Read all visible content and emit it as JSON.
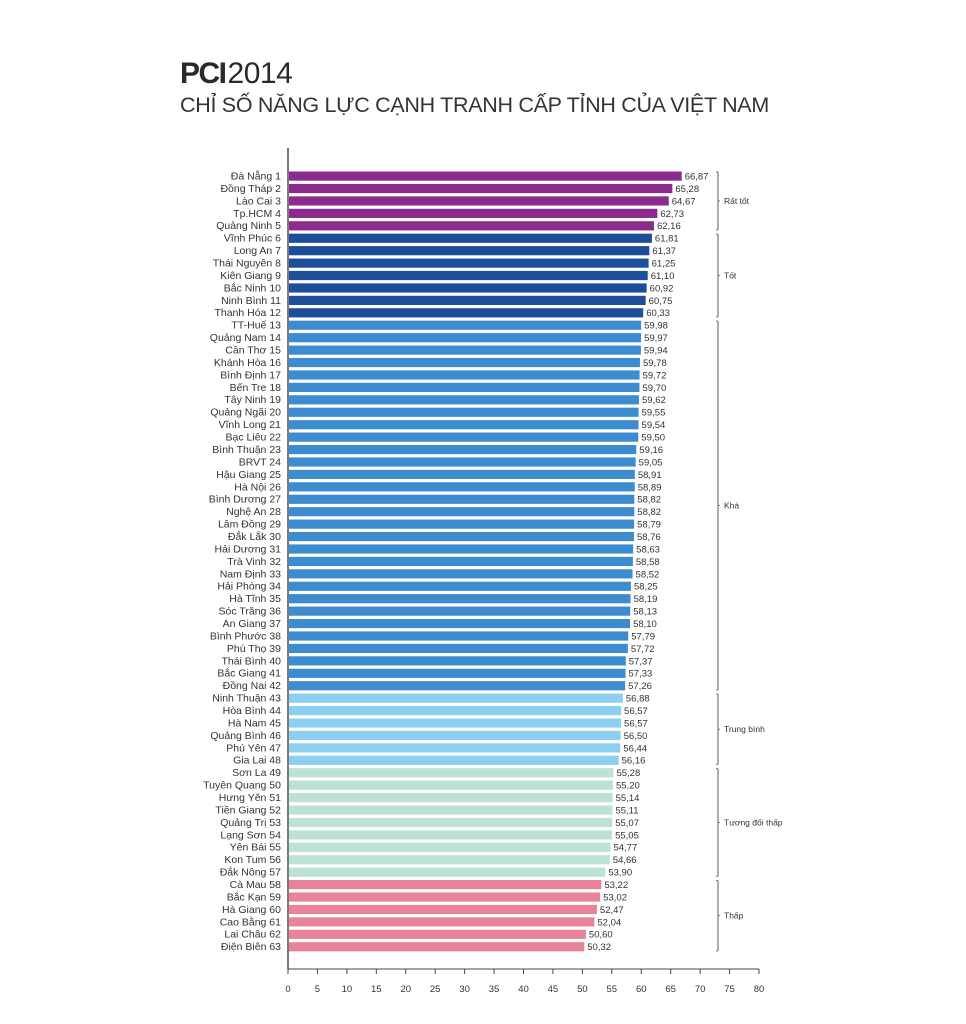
{
  "title": {
    "bold": "PCI",
    "year": "2014",
    "subtitle": "CHỈ SỐ NĂNG LỰC CẠNH TRANH CẤP TỈNH CỦA VIỆT NAM"
  },
  "chart_data": {
    "type": "bar",
    "orientation": "horizontal",
    "title": "PCI 2014 - Chỉ số năng lực cạnh tranh cấp tỉnh của Việt Nam",
    "xlabel": "",
    "ylabel": "",
    "xlim": [
      0,
      80
    ],
    "xticks": [
      0,
      5,
      10,
      15,
      20,
      25,
      30,
      35,
      40,
      45,
      50,
      55,
      60,
      65,
      70,
      75,
      80
    ],
    "grid": false,
    "categories": [
      {
        "name": "Đà Nẵng",
        "rank": 1,
        "value": 66.87,
        "label": "66,87",
        "group": "Rất tốt"
      },
      {
        "name": "Đồng Tháp",
        "rank": 2,
        "value": 65.28,
        "label": "65,28",
        "group": "Rất tốt"
      },
      {
        "name": "Lào Cai",
        "rank": 3,
        "value": 64.67,
        "label": "64,67",
        "group": "Rất tốt"
      },
      {
        "name": "Tp.HCM",
        "rank": 4,
        "value": 62.73,
        "label": "62,73",
        "group": "Rất tốt"
      },
      {
        "name": "Quảng Ninh",
        "rank": 5,
        "value": 62.16,
        "label": "62,16",
        "group": "Rất tốt"
      },
      {
        "name": "Vĩnh Phúc",
        "rank": 6,
        "value": 61.81,
        "label": "61,81",
        "group": "Tốt"
      },
      {
        "name": "Long An",
        "rank": 7,
        "value": 61.37,
        "label": "61,37",
        "group": "Tốt"
      },
      {
        "name": "Thái Nguyên",
        "rank": 8,
        "value": 61.25,
        "label": "61,25",
        "group": "Tốt"
      },
      {
        "name": "Kiên Giang",
        "rank": 9,
        "value": 61.1,
        "label": "61,10",
        "group": "Tốt"
      },
      {
        "name": "Bắc Ninh",
        "rank": 10,
        "value": 60.92,
        "label": "60,92",
        "group": "Tốt"
      },
      {
        "name": "Ninh Bình",
        "rank": 11,
        "value": 60.75,
        "label": "60,75",
        "group": "Tốt"
      },
      {
        "name": "Thanh Hóa",
        "rank": 12,
        "value": 60.33,
        "label": "60,33",
        "group": "Tốt"
      },
      {
        "name": "TT-Huế",
        "rank": 13,
        "value": 59.98,
        "label": "59,98",
        "group": "Khá"
      },
      {
        "name": "Quảng Nam",
        "rank": 14,
        "value": 59.97,
        "label": "59,97",
        "group": "Khá"
      },
      {
        "name": "Cần Thơ",
        "rank": 15,
        "value": 59.94,
        "label": "59,94",
        "group": "Khá"
      },
      {
        "name": "Khánh Hòa",
        "rank": 16,
        "value": 59.78,
        "label": "59,78",
        "group": "Khá"
      },
      {
        "name": "Bình Định",
        "rank": 17,
        "value": 59.72,
        "label": "59,72",
        "group": "Khá"
      },
      {
        "name": "Bến Tre",
        "rank": 18,
        "value": 59.7,
        "label": "59,70",
        "group": "Khá"
      },
      {
        "name": "Tây Ninh",
        "rank": 19,
        "value": 59.62,
        "label": "59,62",
        "group": "Khá"
      },
      {
        "name": "Quảng Ngãi",
        "rank": 20,
        "value": 59.55,
        "label": "59,55",
        "group": "Khá"
      },
      {
        "name": "Vĩnh Long",
        "rank": 21,
        "value": 59.54,
        "label": "59,54",
        "group": "Khá"
      },
      {
        "name": "Bạc Liêu",
        "rank": 22,
        "value": 59.5,
        "label": "59,50",
        "group": "Khá"
      },
      {
        "name": "Bình Thuận",
        "rank": 23,
        "value": 59.16,
        "label": "59,16",
        "group": "Khá"
      },
      {
        "name": "BRVT",
        "rank": 24,
        "value": 59.05,
        "label": "59,05",
        "group": "Khá"
      },
      {
        "name": "Hậu Giang",
        "rank": 25,
        "value": 58.91,
        "label": "58,91",
        "group": "Khá"
      },
      {
        "name": "Hà Nội",
        "rank": 26,
        "value": 58.89,
        "label": "58,89",
        "group": "Khá"
      },
      {
        "name": "Bình Dương",
        "rank": 27,
        "value": 58.82,
        "label": "58,82",
        "group": "Khá"
      },
      {
        "name": "Nghệ An",
        "rank": 28,
        "value": 58.82,
        "label": "58,82",
        "group": "Khá"
      },
      {
        "name": "Lâm Đồng",
        "rank": 29,
        "value": 58.79,
        "label": "58,79",
        "group": "Khá"
      },
      {
        "name": "Đắk Lắk",
        "rank": 30,
        "value": 58.76,
        "label": "58,76",
        "group": "Khá"
      },
      {
        "name": "Hải Dương",
        "rank": 31,
        "value": 58.63,
        "label": "58,63",
        "group": "Khá"
      },
      {
        "name": "Trà Vinh",
        "rank": 32,
        "value": 58.58,
        "label": "58,58",
        "group": "Khá"
      },
      {
        "name": "Nam Định",
        "rank": 33,
        "value": 58.52,
        "label": "58,52",
        "group": "Khá"
      },
      {
        "name": "Hải Phòng",
        "rank": 34,
        "value": 58.25,
        "label": "58,25",
        "group": "Khá"
      },
      {
        "name": "Hà Tĩnh",
        "rank": 35,
        "value": 58.19,
        "label": "58,19",
        "group": "Khá"
      },
      {
        "name": "Sóc Trăng",
        "rank": 36,
        "value": 58.13,
        "label": "58,13",
        "group": "Khá"
      },
      {
        "name": "An Giang",
        "rank": 37,
        "value": 58.1,
        "label": "58,10",
        "group": "Khá"
      },
      {
        "name": "Bình Phước",
        "rank": 38,
        "value": 57.79,
        "label": "57,79",
        "group": "Khá"
      },
      {
        "name": "Phú Thọ",
        "rank": 39,
        "value": 57.72,
        "label": "57,72",
        "group": "Khá"
      },
      {
        "name": "Thái Bình",
        "rank": 40,
        "value": 57.37,
        "label": "57,37",
        "group": "Khá"
      },
      {
        "name": "Bắc Giang",
        "rank": 41,
        "value": 57.33,
        "label": "57,33",
        "group": "Khá"
      },
      {
        "name": "Đồng Nai",
        "rank": 42,
        "value": 57.26,
        "label": "57,26",
        "group": "Khá"
      },
      {
        "name": "Ninh Thuận",
        "rank": 43,
        "value": 56.88,
        "label": "56,88",
        "group": "Trung bình"
      },
      {
        "name": "Hòa Bình",
        "rank": 44,
        "value": 56.57,
        "label": "56,57",
        "group": "Trung bình"
      },
      {
        "name": "Hà Nam",
        "rank": 45,
        "value": 56.57,
        "label": "56,57",
        "group": "Trung bình"
      },
      {
        "name": "Quảng Bình",
        "rank": 46,
        "value": 56.5,
        "label": "56,50",
        "group": "Trung bình"
      },
      {
        "name": "Phú Yên",
        "rank": 47,
        "value": 56.44,
        "label": "56,44",
        "group": "Trung bình"
      },
      {
        "name": "Gia Lai",
        "rank": 48,
        "value": 56.16,
        "label": "56,16",
        "group": "Trung bình"
      },
      {
        "name": "Sơn La",
        "rank": 49,
        "value": 55.28,
        "label": "55,28",
        "group": "Tương đối thấp"
      },
      {
        "name": "Tuyên Quang",
        "rank": 50,
        "value": 55.2,
        "label": "55,20",
        "group": "Tương đối thấp"
      },
      {
        "name": "Hưng Yên",
        "rank": 51,
        "value": 55.14,
        "label": "55,14",
        "group": "Tương đối thấp"
      },
      {
        "name": "Tiền Giang",
        "rank": 52,
        "value": 55.11,
        "label": "55,11",
        "group": "Tương đối thấp"
      },
      {
        "name": "Quảng Trị",
        "rank": 53,
        "value": 55.07,
        "label": "55,07",
        "group": "Tương đối thấp"
      },
      {
        "name": "Lạng Sơn",
        "rank": 54,
        "value": 55.05,
        "label": "55,05",
        "group": "Tương đối thấp"
      },
      {
        "name": "Yên Bái",
        "rank": 55,
        "value": 54.77,
        "label": "54,77",
        "group": "Tương đối thấp"
      },
      {
        "name": "Kon Tum",
        "rank": 56,
        "value": 54.66,
        "label": "54,66",
        "group": "Tương đối thấp"
      },
      {
        "name": "Đắk Nông",
        "rank": 57,
        "value": 53.9,
        "label": "53,90",
        "group": "Tương đối thấp"
      },
      {
        "name": "Cà Mau",
        "rank": 58,
        "value": 53.22,
        "label": "53,22",
        "group": "Thấp"
      },
      {
        "name": "Bắc Kạn",
        "rank": 59,
        "value": 53.02,
        "label": "53,02",
        "group": "Thấp"
      },
      {
        "name": "Hà Giang",
        "rank": 60,
        "value": 52.47,
        "label": "52,47",
        "group": "Thấp"
      },
      {
        "name": "Cao Bằng",
        "rank": 61,
        "value": 52.04,
        "label": "52,04",
        "group": "Thấp"
      },
      {
        "name": "Lai Châu",
        "rank": 62,
        "value": 50.6,
        "label": "50,60",
        "group": "Thấp"
      },
      {
        "name": "Điện Biên",
        "rank": 63,
        "value": 50.32,
        "label": "50,32",
        "group": "Thấp"
      }
    ],
    "groups": [
      {
        "name": "Rất tốt",
        "from_rank": 1,
        "to_rank": 5,
        "color": "#8b2b8f"
      },
      {
        "name": "Tốt",
        "from_rank": 6,
        "to_rank": 12,
        "color": "#1d4e9a"
      },
      {
        "name": "Khá",
        "from_rank": 13,
        "to_rank": 42,
        "color": "#3d8ccf"
      },
      {
        "name": "Trung bình",
        "from_rank": 43,
        "to_rank": 48,
        "color": "#8dcff1"
      },
      {
        "name": "Tương đối thấp",
        "from_rank": 49,
        "to_rank": 57,
        "color": "#bde2d4"
      },
      {
        "name": "Thấp",
        "from_rank": 58,
        "to_rank": 63,
        "color": "#e8849a"
      }
    ],
    "legend": "right (bracketed group labels)"
  }
}
